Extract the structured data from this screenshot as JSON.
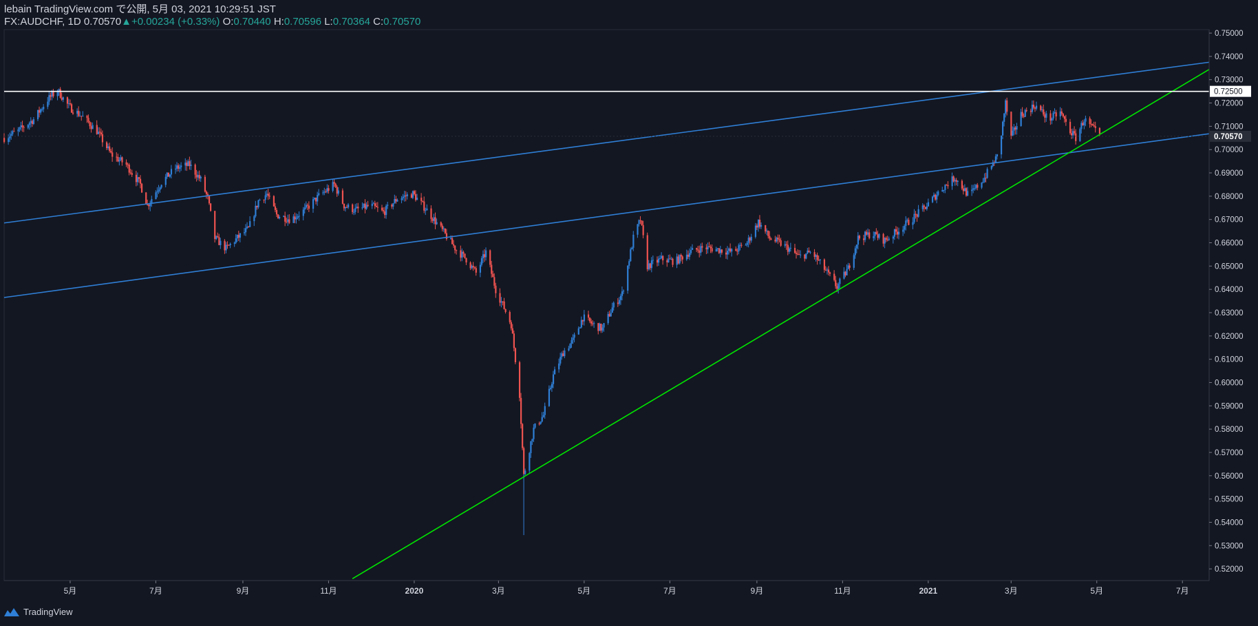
{
  "header": {
    "line1": "lebain TradingView.com で公開, 5月 03, 2021 10:29:51 JST",
    "symbol": "FX:AUDCHF, 1D",
    "last": "0.70570",
    "change": "+0.00234 (+0.33%)",
    "o_label": "O:",
    "o_value": "0.70440",
    "h_label": "H:",
    "h_value": "0.70596",
    "l_label": "L:",
    "l_value": "0.70364",
    "c_label": "C:",
    "c_value": "0.70570"
  },
  "footer": {
    "brand": "TradingView"
  },
  "colors": {
    "background": "#131722",
    "up": "#2f7fd6",
    "down": "#ef5350",
    "trend_blue": "#2f7fd6",
    "trend_green": "#00e600",
    "level_white": "#ffffff",
    "axis_text": "#d1d4dc"
  },
  "chart_data": {
    "type": "candlestick",
    "symbol": "FX:AUDCHF",
    "interval": "1D",
    "ylim": [
      0.515,
      0.7515
    ],
    "y_ticks": [
      "0.75000",
      "0.74000",
      "0.73000",
      "0.72000",
      "0.71000",
      "0.70000",
      "0.69000",
      "0.68000",
      "0.67000",
      "0.66000",
      "0.65000",
      "0.64000",
      "0.63000",
      "0.62000",
      "0.61000",
      "0.60000",
      "0.59000",
      "0.58000",
      "0.57000",
      "0.56000",
      "0.55000",
      "0.54000",
      "0.53000",
      "0.52000"
    ],
    "x_ticks": [
      {
        "label": "5月",
        "date": "2019-05-01"
      },
      {
        "label": "7月",
        "date": "2019-07-01"
      },
      {
        "label": "9月",
        "date": "2019-09-01"
      },
      {
        "label": "11月",
        "date": "2019-11-01"
      },
      {
        "label": "2020",
        "date": "2020-01-01"
      },
      {
        "label": "3月",
        "date": "2020-03-01"
      },
      {
        "label": "5月",
        "date": "2020-05-01"
      },
      {
        "label": "7月",
        "date": "2020-07-01"
      },
      {
        "label": "9月",
        "date": "2020-09-01"
      },
      {
        "label": "11月",
        "date": "2020-11-01"
      },
      {
        "label": "2021",
        "date": "2021-01-01"
      },
      {
        "label": "3月",
        "date": "2021-03-01"
      },
      {
        "label": "5月",
        "date": "2021-05-01"
      },
      {
        "label": "7月",
        "date": "2021-07-01"
      }
    ],
    "x_range": [
      "2019-03-15",
      "2021-07-20"
    ],
    "close_path": [
      [
        "2019-03-15",
        0.705
      ],
      [
        "2019-03-25",
        0.708
      ],
      [
        "2019-04-05",
        0.713
      ],
      [
        "2019-04-15",
        0.7215
      ],
      [
        "2019-04-22",
        0.7255
      ],
      [
        "2019-04-30",
        0.7185
      ],
      [
        "2019-05-10",
        0.714
      ],
      [
        "2019-05-20",
        0.708
      ],
      [
        "2019-05-30",
        0.698
      ],
      [
        "2019-06-10",
        0.6935
      ],
      [
        "2019-06-20",
        0.685
      ],
      [
        "2019-06-25",
        0.676
      ],
      [
        "2019-07-05",
        0.686
      ],
      [
        "2019-07-15",
        0.692
      ],
      [
        "2019-07-25",
        0.6935
      ],
      [
        "2019-08-02",
        0.687
      ],
      [
        "2019-08-07",
        0.679
      ],
      [
        "2019-08-12",
        0.662
      ],
      [
        "2019-08-20",
        0.6575
      ],
      [
        "2019-08-28",
        0.662
      ],
      [
        "2019-09-05",
        0.666
      ],
      [
        "2019-09-12",
        0.678
      ],
      [
        "2019-09-18",
        0.681
      ],
      [
        "2019-09-25",
        0.672
      ],
      [
        "2019-10-05",
        0.67
      ],
      [
        "2019-10-15",
        0.674
      ],
      [
        "2019-10-25",
        0.68
      ],
      [
        "2019-11-05",
        0.685
      ],
      [
        "2019-11-12",
        0.676
      ],
      [
        "2019-11-20",
        0.674
      ],
      [
        "2019-12-01",
        0.676
      ],
      [
        "2019-12-10",
        0.673
      ],
      [
        "2019-12-20",
        0.679
      ],
      [
        "2019-12-31",
        0.681
      ],
      [
        "2020-01-10",
        0.674
      ],
      [
        "2020-01-20",
        0.666
      ],
      [
        "2020-01-31",
        0.657
      ],
      [
        "2020-02-07",
        0.653
      ],
      [
        "2020-02-14",
        0.647
      ],
      [
        "2020-02-21",
        0.656
      ],
      [
        "2020-02-28",
        0.64
      ],
      [
        "2020-03-05",
        0.632
      ],
      [
        "2020-03-10",
        0.625
      ],
      [
        "2020-03-16",
        0.595
      ],
      [
        "2020-03-19",
        0.56
      ],
      [
        "2020-03-26",
        0.58
      ],
      [
        "2020-04-02",
        0.586
      ],
      [
        "2020-04-09",
        0.603
      ],
      [
        "2020-04-16",
        0.613
      ],
      [
        "2020-04-23",
        0.618
      ],
      [
        "2020-04-30",
        0.628
      ],
      [
        "2020-05-07",
        0.625
      ],
      [
        "2020-05-14",
        0.623
      ],
      [
        "2020-05-21",
        0.632
      ],
      [
        "2020-05-28",
        0.638
      ],
      [
        "2020-06-05",
        0.662
      ],
      [
        "2020-06-10",
        0.67
      ],
      [
        "2020-06-15",
        0.65
      ],
      [
        "2020-06-25",
        0.653
      ],
      [
        "2020-07-05",
        0.652
      ],
      [
        "2020-07-15",
        0.656
      ],
      [
        "2020-07-25",
        0.658
      ],
      [
        "2020-08-05",
        0.657
      ],
      [
        "2020-08-15",
        0.656
      ],
      [
        "2020-08-25",
        0.66
      ],
      [
        "2020-09-02",
        0.669
      ],
      [
        "2020-09-10",
        0.662
      ],
      [
        "2020-09-20",
        0.659
      ],
      [
        "2020-10-01",
        0.654
      ],
      [
        "2020-10-10",
        0.656
      ],
      [
        "2020-10-20",
        0.648
      ],
      [
        "2020-10-28",
        0.641
      ],
      [
        "2020-11-05",
        0.649
      ],
      [
        "2020-11-12",
        0.662
      ],
      [
        "2020-11-22",
        0.664
      ],
      [
        "2020-12-01",
        0.661
      ],
      [
        "2020-12-10",
        0.665
      ],
      [
        "2020-12-20",
        0.67
      ],
      [
        "2020-12-31",
        0.676
      ],
      [
        "2021-01-10",
        0.683
      ],
      [
        "2021-01-20",
        0.688
      ],
      [
        "2021-01-30",
        0.68
      ],
      [
        "2021-02-10",
        0.688
      ],
      [
        "2021-02-20",
        0.698
      ],
      [
        "2021-02-25",
        0.72
      ],
      [
        "2021-03-01",
        0.705
      ],
      [
        "2021-03-08",
        0.715
      ],
      [
        "2021-03-18",
        0.719
      ],
      [
        "2021-03-28",
        0.713
      ],
      [
        "2021-04-05",
        0.716
      ],
      [
        "2021-04-12",
        0.708
      ],
      [
        "2021-04-16",
        0.705
      ],
      [
        "2021-04-22",
        0.713
      ],
      [
        "2021-04-28",
        0.709
      ],
      [
        "2021-05-03",
        0.7057
      ]
    ],
    "lines": [
      {
        "name": "upper-channel",
        "color": "#2f7fd6",
        "from": [
          "2019-03-15",
          0.6685
        ],
        "to": [
          "2021-07-20",
          0.7375
        ]
      },
      {
        "name": "lower-channel",
        "color": "#2f7fd6",
        "from": [
          "2019-03-15",
          0.6365
        ],
        "to": [
          "2021-07-20",
          0.7068
        ]
      },
      {
        "name": "support-trend",
        "color": "#00e600",
        "from": [
          "2019-11-18",
          0.5158
        ],
        "to": [
          "2021-07-20",
          0.7344
        ]
      }
    ],
    "levels": [
      {
        "value": 0.725,
        "label": "0.72500",
        "color": "#ffffff"
      }
    ],
    "last_price": {
      "value": 0.7057,
      "label": "0.70570"
    }
  }
}
